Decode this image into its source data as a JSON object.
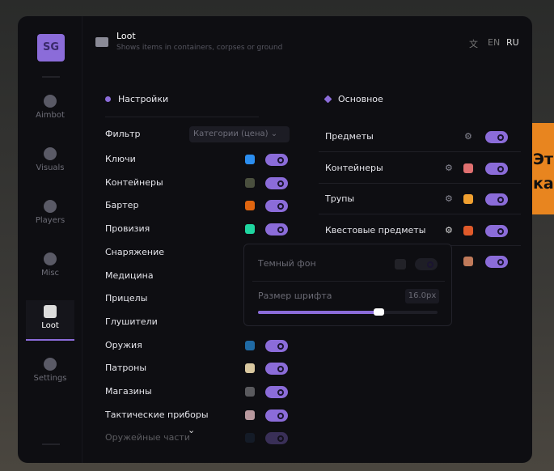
{
  "background_text": [
    "Эт",
    "ка"
  ],
  "logo": "SG",
  "sidebar": {
    "items": [
      {
        "label": "Aimbot",
        "icon": "alien-icon"
      },
      {
        "label": "Visuals",
        "icon": "glasses-icon"
      },
      {
        "label": "Players",
        "icon": "users-icon"
      },
      {
        "label": "Misc",
        "icon": "dots-icon"
      },
      {
        "label": "Loot",
        "icon": "briefcase-icon",
        "active": true
      },
      {
        "label": "Settings",
        "icon": "list-icon"
      }
    ]
  },
  "header": {
    "title": "Loot",
    "subtitle": "Shows items in containers, corpses or ground",
    "langs": [
      "EN",
      "RU"
    ],
    "active_lang": "RU"
  },
  "settings": {
    "title": "Настройки",
    "filter_label": "Фильтр",
    "filter_value": "Категории (цена)",
    "items": [
      {
        "label": "Ключи",
        "color": "#2b8ef0",
        "on": true
      },
      {
        "label": "Контейнеры",
        "color": "#4a4f3e",
        "on": true
      },
      {
        "label": "Бартер",
        "color": "#e0650f",
        "on": true
      },
      {
        "label": "Провизия",
        "color": "#1fd6a0",
        "on": true
      },
      {
        "label": "Снаряжение"
      },
      {
        "label": "Медицина"
      },
      {
        "label": "Прицелы"
      },
      {
        "label": "Глушители"
      },
      {
        "label": "Оружия",
        "color": "#1f6aa5",
        "on": true
      },
      {
        "label": "Патроны",
        "color": "#d9c8a0",
        "on": true
      },
      {
        "label": "Магазины",
        "color": "#5a5a5e",
        "on": true
      },
      {
        "label": "Тактические приборы",
        "color": "#b8989e",
        "on": true
      },
      {
        "label": "Оружейные части",
        "color": "#1f3550",
        "on": true
      }
    ]
  },
  "main": {
    "title": "Основное",
    "items": [
      {
        "label": "Предметы",
        "on": true
      },
      {
        "label": "Контейнеры",
        "color": "#e07070",
        "on": true
      },
      {
        "label": "Трупы",
        "color": "#f0a030",
        "on": true
      },
      {
        "label": "Квестовые предметы",
        "color": "#e05a2a",
        "on": true
      },
      {
        "label": "",
        "color": "#c07a5a",
        "on": true
      }
    ]
  },
  "popup": {
    "dark_bg_label": "Темный фон",
    "dark_bg_on": false,
    "font_size_label": "Размер шрифта",
    "font_size_value": "16.0px",
    "font_size_fraction": 0.67
  }
}
